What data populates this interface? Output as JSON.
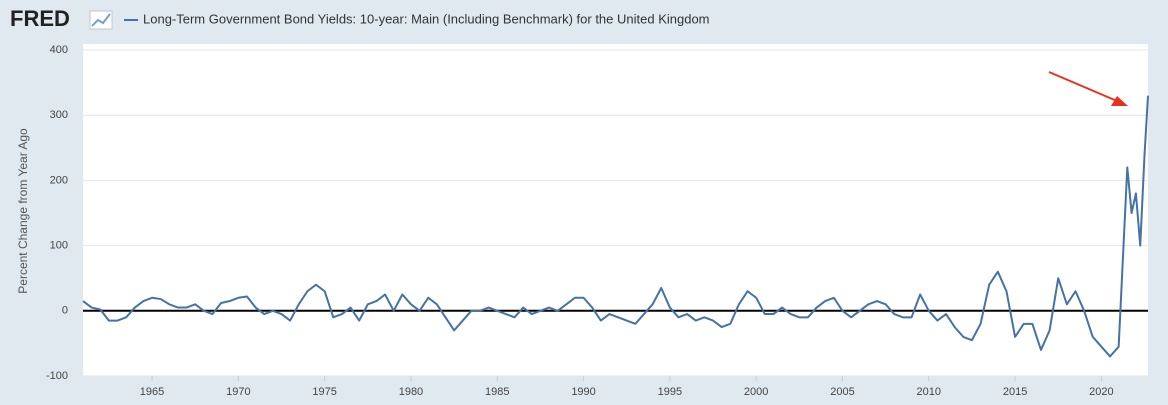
{
  "header": {
    "logo": "FRED"
  },
  "chart_data": {
    "type": "line",
    "y_label": "Percent Change from Year Ago",
    "x": [
      1961,
      1961.5,
      1962,
      1962.5,
      1963,
      1963.5,
      1964,
      1964.5,
      1965,
      1965.5,
      1966,
      1966.5,
      1967,
      1967.5,
      1968,
      1968.5,
      1969,
      1969.5,
      1970,
      1970.5,
      1971,
      1971.5,
      1972,
      1972.5,
      1973,
      1973.5,
      1974,
      1974.5,
      1975,
      1975.5,
      1976,
      1976.5,
      1977,
      1977.5,
      1978,
      1978.5,
      1979,
      1979.5,
      1980,
      1980.5,
      1981,
      1981.5,
      1982,
      1982.5,
      1983,
      1983.5,
      1984,
      1984.5,
      1985,
      1985.5,
      1986,
      1986.5,
      1987,
      1987.5,
      1988,
      1988.5,
      1989,
      1989.5,
      1990,
      1990.5,
      1991,
      1991.5,
      1992,
      1992.5,
      1993,
      1993.5,
      1994,
      1994.5,
      1995,
      1995.5,
      1996,
      1996.5,
      1997,
      1997.5,
      1998,
      1998.5,
      1999,
      1999.5,
      2000,
      2000.5,
      2001,
      2001.5,
      2002,
      2002.5,
      2003,
      2003.5,
      2004,
      2004.5,
      2005,
      2005.5,
      2006,
      2006.5,
      2007,
      2007.5,
      2008,
      2008.5,
      2009,
      2009.5,
      2010,
      2010.5,
      2011,
      2011.5,
      2012,
      2012.5,
      2013,
      2013.5,
      2014,
      2014.5,
      2015,
      2015.5,
      2016,
      2016.5,
      2017,
      2017.5,
      2018,
      2018.5,
      2019,
      2019.5,
      2020,
      2020.5,
      2021,
      2021.5,
      2021.75,
      2022,
      2022.25,
      2022.5,
      2022.7
    ],
    "series": [
      {
        "name": "Long-Term Government Bond Yields: 10-year: Main (Including Benchmark) for the United Kingdom",
        "color": "#4572a7",
        "values": [
          15,
          5,
          2,
          -15,
          -15,
          -10,
          5,
          15,
          20,
          18,
          10,
          5,
          5,
          10,
          0,
          -5,
          12,
          15,
          20,
          22,
          5,
          -5,
          0,
          -5,
          -15,
          10,
          30,
          40,
          30,
          -10,
          -5,
          5,
          -15,
          10,
          15,
          25,
          0,
          25,
          10,
          0,
          20,
          10,
          -10,
          -30,
          -15,
          0,
          0,
          5,
          0,
          -5,
          -10,
          5,
          -5,
          0,
          5,
          0,
          10,
          20,
          20,
          5,
          -15,
          -5,
          -10,
          -15,
          -20,
          -5,
          10,
          35,
          5,
          -10,
          -5,
          -15,
          -10,
          -15,
          -25,
          -20,
          10,
          30,
          20,
          -5,
          -5,
          5,
          -5,
          -10,
          -10,
          5,
          15,
          20,
          0,
          -10,
          0,
          10,
          15,
          10,
          -5,
          -10,
          -10,
          25,
          0,
          -15,
          -5,
          -25,
          -40,
          -45,
          -20,
          40,
          60,
          30,
          -40,
          -20,
          -20,
          -60,
          -30,
          50,
          10,
          30,
          0,
          -40,
          -55,
          -70,
          -55,
          220,
          150,
          180,
          100,
          240,
          330
        ]
      }
    ],
    "xlim": [
      1961,
      2022.7
    ],
    "ylim": [
      -100,
      400
    ],
    "xticks": [
      1965,
      1970,
      1975,
      1980,
      1985,
      1990,
      1995,
      2000,
      2005,
      2010,
      2015,
      2020
    ],
    "yticks": [
      -100,
      0,
      100,
      200,
      300,
      400
    ],
    "zero_line": 0,
    "grid": true
  }
}
